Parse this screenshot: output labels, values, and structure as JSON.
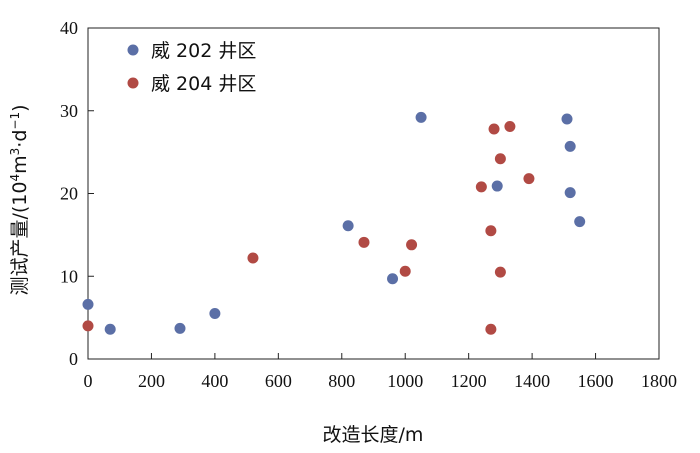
{
  "chart_data": {
    "type": "scatter",
    "title": "",
    "xlabel": "改造长度/m",
    "ylabel_main": "测试产量/(10",
    "ylabel_sup1": "4",
    "ylabel_mid": "m",
    "ylabel_sup2": "3",
    "ylabel_mid2": "·d",
    "ylabel_sup3": "−1",
    "ylabel_end": ")",
    "xlim": [
      0,
      1800
    ],
    "ylim": [
      0,
      40
    ],
    "xticks": [
      0,
      200,
      400,
      600,
      800,
      1000,
      1200,
      1400,
      1600,
      1800
    ],
    "yticks": [
      0,
      10,
      20,
      30,
      40
    ],
    "grid": false,
    "legend_position": "top-left",
    "series": [
      {
        "name": "威 202 井区",
        "color": "#5b6fa6",
        "points": [
          {
            "x": 0,
            "y": 6.6
          },
          {
            "x": 70,
            "y": 3.6
          },
          {
            "x": 290,
            "y": 3.7
          },
          {
            "x": 400,
            "y": 5.5
          },
          {
            "x": 820,
            "y": 16.1
          },
          {
            "x": 960,
            "y": 9.7
          },
          {
            "x": 1050,
            "y": 29.2
          },
          {
            "x": 1290,
            "y": 20.9
          },
          {
            "x": 1510,
            "y": 29.0
          },
          {
            "x": 1520,
            "y": 25.7
          },
          {
            "x": 1520,
            "y": 20.1
          },
          {
            "x": 1550,
            "y": 16.6
          }
        ]
      },
      {
        "name": "威 204 井区",
        "color": "#b14a44",
        "points": [
          {
            "x": 0,
            "y": 4.0
          },
          {
            "x": 520,
            "y": 12.2
          },
          {
            "x": 870,
            "y": 14.1
          },
          {
            "x": 1000,
            "y": 10.6
          },
          {
            "x": 1020,
            "y": 13.8
          },
          {
            "x": 1240,
            "y": 20.8
          },
          {
            "x": 1270,
            "y": 15.5
          },
          {
            "x": 1280,
            "y": 27.8
          },
          {
            "x": 1270,
            "y": 3.6
          },
          {
            "x": 1300,
            "y": 24.2
          },
          {
            "x": 1300,
            "y": 10.5
          },
          {
            "x": 1330,
            "y": 28.1
          },
          {
            "x": 1390,
            "y": 21.8
          }
        ]
      }
    ]
  }
}
